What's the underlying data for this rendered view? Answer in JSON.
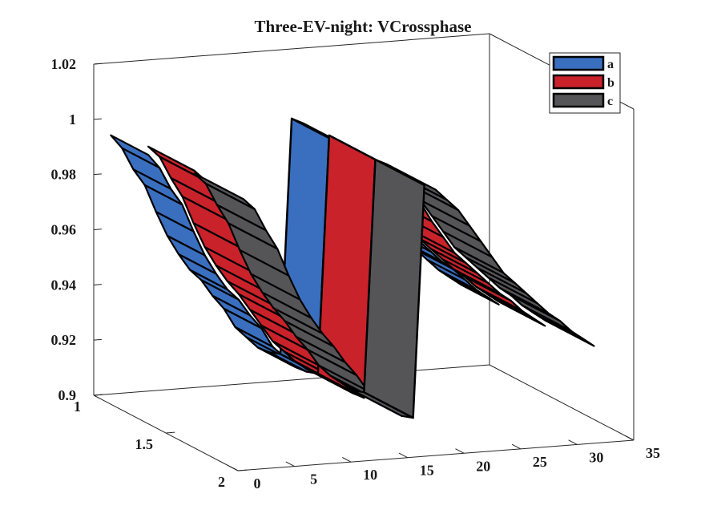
{
  "chart_data": {
    "type": "area",
    "title": "Three-EV-night: VCrossphase",
    "xlabel": "",
    "ylabel": "",
    "zlabel": "",
    "x_ticks": [
      "0",
      "5",
      "10",
      "15",
      "20",
      "25",
      "30",
      "35"
    ],
    "y_ticks": [
      "1",
      "1.5",
      "2"
    ],
    "z_ticks": [
      "0.9",
      "0.92",
      "0.94",
      "0.96",
      "0.98",
      "1",
      "1.02"
    ],
    "xlim": [
      0,
      35
    ],
    "ylim": [
      1,
      2
    ],
    "zlim": [
      0.9,
      1.02
    ],
    "legend_position": "top-right",
    "series": [
      {
        "name": "a",
        "color": "#3a6fbf",
        "x": [
          1,
          2,
          3,
          4,
          5,
          6,
          7,
          8,
          9,
          10,
          11,
          12,
          13,
          14,
          15,
          16,
          17,
          18,
          19,
          20,
          21,
          22,
          23,
          24,
          25,
          26,
          27,
          28,
          29,
          30,
          31,
          32
        ],
        "values": [
          0.995,
          0.99,
          0.982,
          0.976,
          0.966,
          0.957,
          0.95,
          0.944,
          0.94,
          0.934,
          0.929,
          0.922,
          0.918,
          0.914,
          0.912,
          0.911,
          0.996,
          0.994,
          0.99,
          0.985,
          0.978,
          0.972,
          0.966,
          0.96,
          0.956,
          0.952,
          0.948,
          0.945,
          0.941,
          0.937,
          0.934,
          0.931
        ]
      },
      {
        "name": "b",
        "color": "#c9222b",
        "x": [
          1,
          2,
          3,
          4,
          5,
          6,
          7,
          8,
          9,
          10,
          11,
          12,
          13,
          14,
          15,
          16,
          17,
          18,
          19,
          20,
          21,
          22,
          23,
          24,
          25,
          26,
          27,
          28,
          29,
          30,
          31,
          32
        ],
        "values": [
          0.998,
          0.994,
          0.986,
          0.979,
          0.969,
          0.96,
          0.953,
          0.947,
          0.942,
          0.936,
          0.93,
          0.924,
          0.92,
          0.916,
          0.913,
          0.911,
          0.997,
          0.994,
          0.991,
          0.986,
          0.98,
          0.973,
          0.967,
          0.961,
          0.957,
          0.953,
          0.949,
          0.945,
          0.942,
          0.938,
          0.935,
          0.932
        ]
      },
      {
        "name": "c",
        "color": "#555558",
        "x": [
          1,
          2,
          3,
          4,
          5,
          6,
          7,
          8,
          9,
          10,
          11,
          12,
          13,
          14,
          15,
          16,
          17,
          18,
          19,
          20,
          21,
          22,
          23,
          24,
          25,
          26,
          27,
          28,
          29,
          30,
          31,
          32
        ],
        "values": [
          0.997,
          0.993,
          0.985,
          0.978,
          0.968,
          0.959,
          0.952,
          0.946,
          0.941,
          0.935,
          0.93,
          0.924,
          0.92,
          0.917,
          0.914,
          0.913,
          0.997,
          0.995,
          0.991,
          0.987,
          0.981,
          0.975,
          0.969,
          0.963,
          0.959,
          0.955,
          0.951,
          0.947,
          0.944,
          0.94,
          0.937,
          0.934
        ]
      }
    ]
  }
}
